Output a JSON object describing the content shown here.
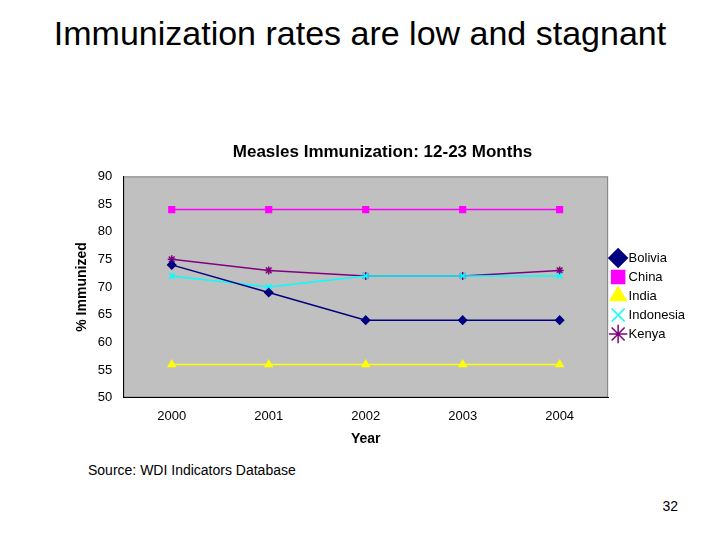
{
  "slide": {
    "heading": "Immunization rates are low and stagnant",
    "source": "Source: WDI Indicators Database",
    "page_number": 32
  },
  "chart_data": {
    "type": "line",
    "title": "Measles Immunization: 12-23 Months",
    "x_label": "Year",
    "y_label": "% Immunized",
    "categories": [
      "2000",
      "2001",
      "2002",
      "2003",
      "2004"
    ],
    "series": [
      {
        "name": "Bolivia",
        "color": "#000080",
        "marker": "diamond",
        "values": [
          74,
          69,
          64,
          64,
          64
        ]
      },
      {
        "name": "China",
        "color": "#ff00ff",
        "marker": "square",
        "values": [
          84,
          84,
          84,
          84,
          84
        ]
      },
      {
        "name": "India",
        "color": "#ffff00",
        "marker": "triangle",
        "values": [
          56,
          56,
          56,
          56,
          56
        ]
      },
      {
        "name": "Indonesia",
        "color": "#00ffff",
        "marker": "x",
        "values": [
          72,
          70,
          72,
          72,
          72
        ]
      },
      {
        "name": "Kenya",
        "color": "#800080",
        "marker": "star",
        "values": [
          75,
          73,
          72,
          72,
          73
        ]
      }
    ],
    "ylim": [
      50,
      90
    ],
    "yticks": [
      50,
      55,
      60,
      65,
      70,
      75,
      80,
      85,
      90
    ],
    "grid": false,
    "legend": "right"
  }
}
